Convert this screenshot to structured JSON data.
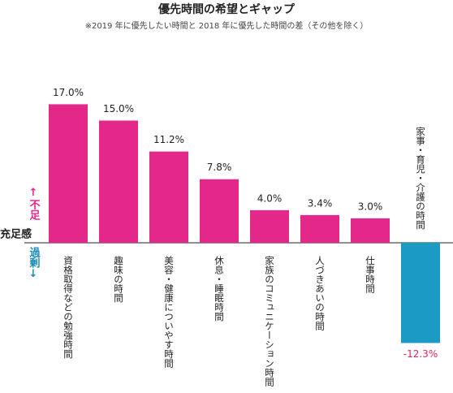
{
  "chart_data": {
    "type": "bar",
    "title": "優先時間の希望とギャップ",
    "subtitle": "※2019 年に優先したい時間と 2018 年に優先した時間の差（その他を除く）",
    "axis_label": "充足感",
    "upper_label": "↑不足",
    "lower_label": "過剰↓",
    "categories": [
      "資格取得などの勉強時間",
      "趣味の時間",
      "美容・健康についやす時間",
      "休息・睡眠時間",
      "家族のコミュニケーション時間",
      "人づきあいの時間",
      "仕事時間",
      "家事・育児・介護の時間"
    ],
    "values": [
      17.0,
      15.0,
      11.2,
      7.8,
      4.0,
      3.4,
      3.0,
      -12.3
    ],
    "value_labels": [
      "17.0%",
      "15.0%",
      "11.2%",
      "7.8%",
      "4.0%",
      "3.4%",
      "3.0%",
      "-12.3%"
    ],
    "colors": [
      "#e3288a",
      "#e3288a",
      "#e3288a",
      "#e3288a",
      "#e3288a",
      "#e3288a",
      "#e3288a",
      "#1b9bc4"
    ],
    "upper_color": "#e3288a",
    "lower_color": "#1b8cb8",
    "negative_label_color": "#e0245e"
  }
}
